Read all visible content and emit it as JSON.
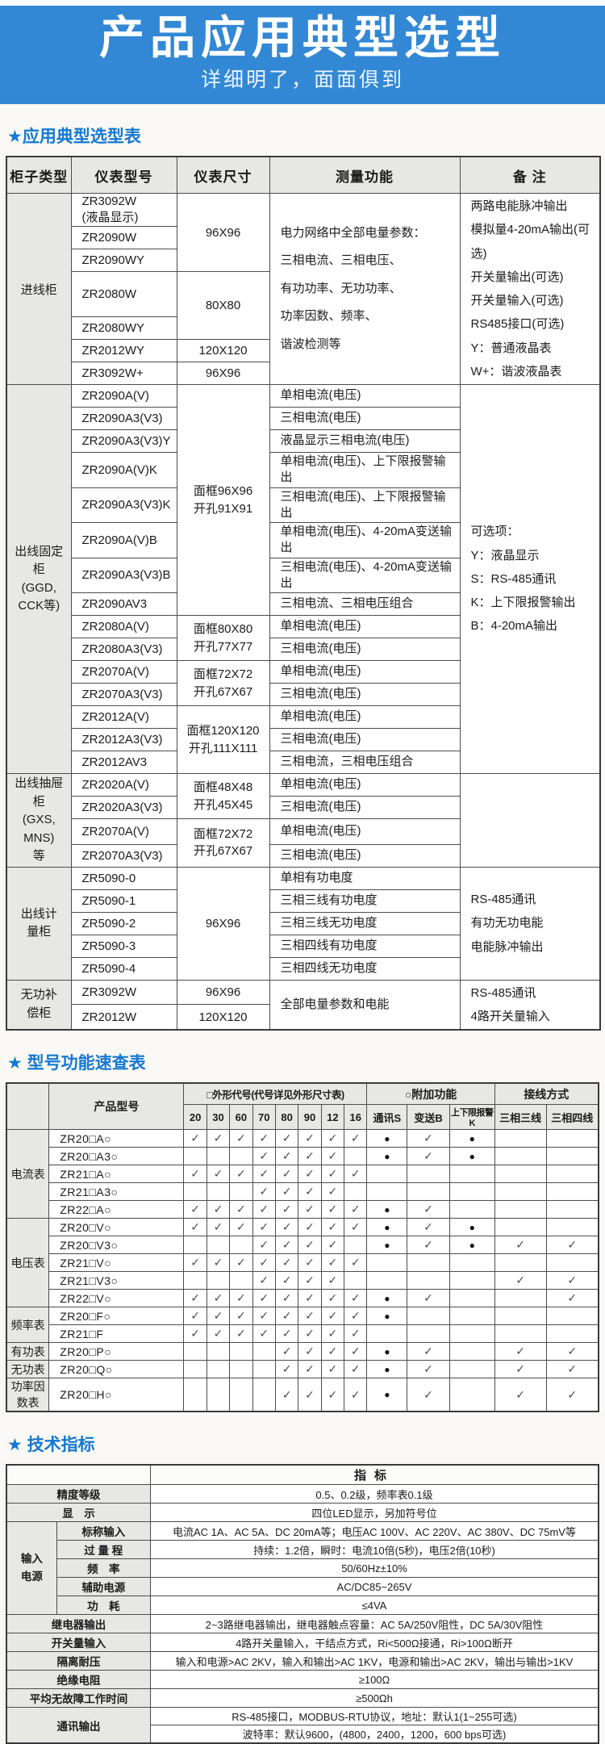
{
  "banner": {
    "title": "产品应用典型选型",
    "subtitle": "详细明了，面面俱到"
  },
  "sections": {
    "s1_heading": "★应用典型选型表",
    "s2_heading": "★ 型号功能速查表",
    "s3_heading": "★ 技术指标"
  },
  "selection_table": {
    "headers": [
      "柜子类型",
      "仪表型号",
      "仪表尺寸",
      "测量功能",
      "备  注"
    ],
    "rows": [
      [
        {
          "t": "进线柜",
          "rs": 7,
          "k": "cab"
        },
        {
          "t": "ZR3092W\n(液晶显示)",
          "k": "model"
        },
        {
          "t": "96X96",
          "rs": 3,
          "k": "size"
        },
        {
          "t": "电力网络中全部电量参数：\n三相电流、三相电压、\n有功功率、无功功率、\n功率因数、频率、\n谐波检测等",
          "rs": 7,
          "k": "func"
        },
        {
          "t": "两路电能脉冲输出\n模拟量4-20mA输出(可选)\n开关量输出(可选)\n开关量输入(可选)\nRS485接口(可选)\nY：普通液晶表\nW+：谐波液晶表",
          "rs": 7,
          "k": "note"
        }
      ],
      [
        {
          "t": "ZR2090W",
          "k": "model"
        }
      ],
      [
        {
          "t": "ZR2090WY",
          "k": "model"
        }
      ],
      [
        {
          "t": "ZR2080W",
          "k": "model"
        },
        {
          "t": "80X80",
          "rs": 2,
          "k": "size"
        }
      ],
      [
        {
          "t": "ZR2080WY",
          "k": "model"
        }
      ],
      [
        {
          "t": "ZR2012WY",
          "k": "model"
        },
        {
          "t": "120X120",
          "k": "size"
        }
      ],
      [
        {
          "t": "ZR3092W+",
          "k": "model"
        },
        {
          "t": "96X96",
          "k": "size"
        }
      ],
      [
        {
          "t": "出线固定柜\n(GGD,\nCCK等)",
          "rs": 15,
          "k": "cab"
        },
        {
          "t": "ZR2090A(V)",
          "k": "model"
        },
        {
          "t": "面框96X96\n开孔91X91",
          "rs": 8,
          "k": "size"
        },
        {
          "t": "单相电流(电压)",
          "k": "func"
        },
        {
          "t": "可选项：\nY：液晶显示\nS：RS-485通讯\nK：上下限报警输出\nB：4-20mA输出",
          "rs": 15,
          "k": "note"
        }
      ],
      [
        {
          "t": "ZR2090A3(V3)",
          "k": "model"
        },
        {
          "t": "三相电流(电压)",
          "k": "func"
        }
      ],
      [
        {
          "t": "ZR2090A3(V3)Y",
          "k": "model"
        },
        {
          "t": "液晶显示三相电流(电压)",
          "k": "func"
        }
      ],
      [
        {
          "t": "ZR2090A(V)K",
          "k": "model"
        },
        {
          "t": "单相电流(电压)、上下限报警输出",
          "k": "func"
        }
      ],
      [
        {
          "t": "ZR2090A3(V3)K",
          "k": "model"
        },
        {
          "t": "三相电流(电压)、上下限报警输出",
          "k": "func"
        }
      ],
      [
        {
          "t": "ZR2090A(V)B",
          "k": "model"
        },
        {
          "t": "单相电流(电压)、4-20mA变送输出",
          "k": "func"
        }
      ],
      [
        {
          "t": "ZR2090A3(V3)B",
          "k": "model"
        },
        {
          "t": "三相电流(电压)、4-20mA变送输出",
          "k": "func"
        }
      ],
      [
        {
          "t": "ZR2090AV3",
          "k": "model"
        },
        {
          "t": "三相电流、三相电压组合",
          "k": "func"
        }
      ],
      [
        {
          "t": "ZR2080A(V)",
          "k": "model"
        },
        {
          "t": "面框80X80\n开孔77X77",
          "rs": 2,
          "k": "size"
        },
        {
          "t": "单相电流(电压)",
          "k": "func"
        }
      ],
      [
        {
          "t": "ZR2080A3(V3)",
          "k": "model"
        },
        {
          "t": "三相电流(电压)",
          "k": "func"
        }
      ],
      [
        {
          "t": "ZR2070A(V)",
          "k": "model"
        },
        {
          "t": "面框72X72\n开孔67X67",
          "rs": 2,
          "k": "size"
        },
        {
          "t": "单相电流(电压)",
          "k": "func"
        }
      ],
      [
        {
          "t": "ZR2070A3(V3)",
          "k": "model"
        },
        {
          "t": "三相电流(电压)",
          "k": "func"
        }
      ],
      [
        {
          "t": "ZR2012A(V)",
          "k": "model"
        },
        {
          "t": "面框120X120\n开孔111X111",
          "rs": 3,
          "k": "size"
        },
        {
          "t": "单相电流(电压)",
          "k": "func"
        }
      ],
      [
        {
          "t": "ZR2012A3(V3)",
          "k": "model"
        },
        {
          "t": "三相电流(电压)",
          "k": "func"
        }
      ],
      [
        {
          "t": "ZR2012AV3",
          "k": "model"
        },
        {
          "t": "三相电流，三相电压组合",
          "k": "func"
        }
      ],
      [
        {
          "t": "出线抽屉柜\n(GXS,\nMNS)\n等",
          "rs": 4,
          "k": "cab"
        },
        {
          "t": "ZR2020A(V)",
          "k": "model"
        },
        {
          "t": "面框48X48\n开孔45X45",
          "rs": 2,
          "k": "size"
        },
        {
          "t": "单相电流(电压)",
          "k": "func"
        },
        {
          "t": "",
          "rs": 4,
          "k": "note"
        }
      ],
      [
        {
          "t": "ZR2020A3(V3)",
          "k": "model"
        },
        {
          "t": "三相电流(电压)",
          "k": "func"
        }
      ],
      [
        {
          "t": "ZR2070A(V)",
          "k": "model"
        },
        {
          "t": "面框72X72\n开孔67X67",
          "rs": 2,
          "k": "size"
        },
        {
          "t": "单相电流(电压)",
          "k": "func"
        }
      ],
      [
        {
          "t": "ZR2070A3(V3)",
          "k": "model"
        },
        {
          "t": "三相电流(电压)",
          "k": "func"
        }
      ],
      [
        {
          "t": "出线计\n量柜",
          "rs": 5,
          "k": "cab"
        },
        {
          "t": "ZR5090-0",
          "k": "model"
        },
        {
          "t": "96X96",
          "rs": 5,
          "k": "size"
        },
        {
          "t": "单相有功电度",
          "k": "func"
        },
        {
          "t": "RS-485通讯\n有功无功电能\n电能脉冲输出",
          "rs": 5,
          "k": "note"
        }
      ],
      [
        {
          "t": "ZR5090-1",
          "k": "model"
        },
        {
          "t": "三相三线有功电度",
          "k": "func"
        }
      ],
      [
        {
          "t": "ZR5090-2",
          "k": "model"
        },
        {
          "t": "三相三线无功电度",
          "k": "func"
        }
      ],
      [
        {
          "t": "ZR5090-3",
          "k": "model"
        },
        {
          "t": "三相四线有功电度",
          "k": "func"
        }
      ],
      [
        {
          "t": "ZR5090-4",
          "k": "model"
        },
        {
          "t": "三相四线无功电度",
          "k": "func"
        }
      ],
      [
        {
          "t": "无功补\n偿柜",
          "rs": 2,
          "k": "cab"
        },
        {
          "t": "ZR3092W",
          "k": "model"
        },
        {
          "t": "96X96",
          "k": "size"
        },
        {
          "t": "全部电量参数和电能",
          "rs": 2,
          "k": "func"
        },
        {
          "t": "RS-485通讯\n4路开关量输入",
          "rs": 2,
          "k": "note"
        }
      ],
      [
        {
          "t": "ZR2012W",
          "k": "model"
        },
        {
          "t": "120X120",
          "k": "size"
        }
      ]
    ]
  },
  "model_table": {
    "header": {
      "product_label": "产品型号",
      "shape_group": "□外形代号(代号详见外形尺寸表)",
      "addon_group": "○附加功能",
      "wiring_group": "接线方式",
      "size_cols": [
        "20",
        "30",
        "60",
        "70",
        "80",
        "90",
        "12",
        "16"
      ],
      "addon_cols": [
        "通讯S",
        "变送B",
        "上下限报警K"
      ],
      "wiring_cols": [
        "三相三线",
        "三相四线"
      ]
    },
    "legend": {
      "check": "✓",
      "dot": "●"
    },
    "groups": [
      {
        "label": "电流表",
        "rows": [
          {
            "model": "ZR20□A○",
            "sizes": [
              1,
              1,
              1,
              1,
              1,
              1,
              1,
              1
            ],
            "addons": [
              2,
              1,
              2
            ],
            "wiring": [
              0,
              0
            ]
          },
          {
            "model": "ZR20□A3○",
            "sizes": [
              0,
              0,
              0,
              1,
              1,
              1,
              1,
              0
            ],
            "addons": [
              2,
              1,
              2
            ],
            "wiring": [
              0,
              0
            ]
          },
          {
            "model": "ZR21□A○",
            "sizes": [
              1,
              1,
              1,
              1,
              1,
              1,
              1,
              1
            ],
            "addons": [
              0,
              0,
              0
            ],
            "wiring": [
              0,
              0
            ]
          },
          {
            "model": "ZR21□A3○",
            "sizes": [
              0,
              0,
              0,
              1,
              1,
              1,
              1,
              0
            ],
            "addons": [
              0,
              0,
              0
            ],
            "wiring": [
              0,
              0
            ]
          },
          {
            "model": "ZR22□A○",
            "sizes": [
              1,
              1,
              1,
              1,
              1,
              1,
              1,
              1
            ],
            "addons": [
              2,
              1,
              0
            ],
            "wiring": [
              0,
              0
            ]
          }
        ]
      },
      {
        "label": "电压表",
        "rows": [
          {
            "model": "ZR20□V○",
            "sizes": [
              1,
              1,
              1,
              1,
              1,
              1,
              1,
              1
            ],
            "addons": [
              2,
              1,
              2
            ],
            "wiring": [
              0,
              0
            ]
          },
          {
            "model": "ZR20□V3○",
            "sizes": [
              0,
              0,
              0,
              1,
              1,
              1,
              1,
              0
            ],
            "addons": [
              2,
              1,
              2
            ],
            "wiring": [
              1,
              1
            ]
          },
          {
            "model": "ZR21□V○",
            "sizes": [
              1,
              1,
              1,
              1,
              1,
              1,
              1,
              1
            ],
            "addons": [
              0,
              0,
              0
            ],
            "wiring": [
              0,
              0
            ]
          },
          {
            "model": "ZR21□V3○",
            "sizes": [
              0,
              0,
              0,
              1,
              1,
              1,
              1,
              0
            ],
            "addons": [
              0,
              0,
              0
            ],
            "wiring": [
              1,
              1
            ]
          },
          {
            "model": "ZR22□V○",
            "sizes": [
              1,
              1,
              1,
              1,
              1,
              1,
              1,
              1
            ],
            "addons": [
              2,
              1,
              0
            ],
            "wiring": [
              0,
              1
            ]
          }
        ]
      },
      {
        "label": "频率表",
        "rows": [
          {
            "model": "ZR20□F○",
            "sizes": [
              1,
              1,
              1,
              1,
              1,
              1,
              1,
              1
            ],
            "addons": [
              2,
              0,
              0
            ],
            "wiring": [
              0,
              0
            ]
          },
          {
            "model": "ZR21□F",
            "sizes": [
              1,
              1,
              1,
              1,
              1,
              1,
              1,
              1
            ],
            "addons": [
              0,
              0,
              0
            ],
            "wiring": [
              0,
              0
            ]
          }
        ]
      },
      {
        "label": "有功表",
        "rows": [
          {
            "model": "ZR20□P○",
            "sizes": [
              0,
              0,
              0,
              0,
              1,
              1,
              1,
              1
            ],
            "addons": [
              2,
              1,
              0
            ],
            "wiring": [
              1,
              1
            ]
          }
        ]
      },
      {
        "label": "无功表",
        "rows": [
          {
            "model": "ZR20□Q○",
            "sizes": [
              0,
              0,
              0,
              0,
              1,
              1,
              1,
              1
            ],
            "addons": [
              2,
              1,
              0
            ],
            "wiring": [
              1,
              1
            ]
          }
        ]
      },
      {
        "label": "功率因数表",
        "rows": [
          {
            "model": "ZR20□H○",
            "sizes": [
              0,
              0,
              0,
              0,
              1,
              1,
              1,
              1
            ],
            "addons": [
              2,
              1,
              0
            ],
            "wiring": [
              1,
              1
            ]
          }
        ]
      }
    ]
  },
  "spec_table": {
    "header_label": "指标",
    "rows": [
      {
        "label": "精度等级",
        "value": "0.5、0.2级，频率表0.1级"
      },
      {
        "label": "显　示",
        "value": "四位LED显示，另加符号位"
      },
      {
        "group": "输入\n电源",
        "sub": [
          {
            "label": "标称输入",
            "value": "电流AC 1A、AC 5A、DC 20mA等；电压AC 100V、AC 220V、AC 380V、DC 75mV等"
          },
          {
            "label": "过 量 程",
            "value": "持续：1.2倍，瞬时：电流10倍(5秒)，电压2倍(10秒)"
          },
          {
            "label": "频　率",
            "value": "50/60Hz±10%"
          },
          {
            "label": "辅助电源",
            "value": "AC/DC85~265V"
          },
          {
            "label": "功　耗",
            "value": "≤4VA"
          }
        ]
      },
      {
        "label": "继电器输出",
        "value": "2~3路继电器输出，继电器触点容量：AC 5A/250V阻性，DC 5A/30V阻性"
      },
      {
        "label": "开关量输入",
        "value": "4路开关量输入，干结点方式，Ri<500Ω接通，Ri>100Ω断开"
      },
      {
        "label": "隔离耐压",
        "value": "输入和电源>AC 2KV，输入和输出>AC 1KV，电源和输出>AC 2KV，输出与输出>1KV"
      },
      {
        "label": "绝缘电阻",
        "value": "≥100Ω"
      },
      {
        "label": "平均无故障工作时间",
        "value": "≥500Ωh"
      },
      {
        "label": "通讯输出",
        "values": [
          "RS-485接口，MODBUS-RTU协议，地址：默认1(1~255可选)",
          "波特率：默认9600，(4800，2400，1200，600 bps可选)"
        ]
      }
    ]
  }
}
